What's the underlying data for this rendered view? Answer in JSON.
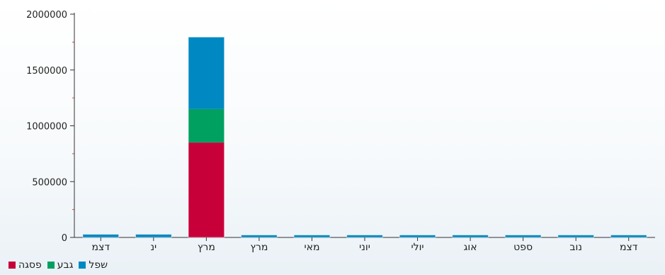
{
  "chart_data": {
    "type": "bar",
    "stacked": true,
    "categories": [
      "דצמ",
      "ינ",
      "מרץ",
      "מרץ",
      "מאי",
      "יוני",
      "יולי",
      "אוג",
      "ספט",
      "נוב",
      "דצמ"
    ],
    "series": [
      {
        "name": "פסגה",
        "color": "#c8003a",
        "values": [
          0,
          0,
          850000,
          0,
          0,
          0,
          0,
          0,
          0,
          0,
          0
        ]
      },
      {
        "name": "גבע",
        "color": "#00a060",
        "values": [
          0,
          0,
          300000,
          0,
          0,
          0,
          0,
          0,
          0,
          0,
          0
        ]
      },
      {
        "name": "שפל",
        "color": "#0088c2",
        "values": [
          28000,
          28000,
          645000,
          22000,
          22000,
          22000,
          22000,
          22000,
          22000,
          22000,
          22000
        ]
      }
    ],
    "ylim": [
      0,
      2000000
    ],
    "yticks": [
      "0",
      "500000",
      "1000000",
      "1500000",
      "2000000"
    ],
    "ytick_values": [
      0,
      500000,
      1000000,
      1500000,
      2000000
    ],
    "legend_position": "bottom-left",
    "grid": false
  }
}
